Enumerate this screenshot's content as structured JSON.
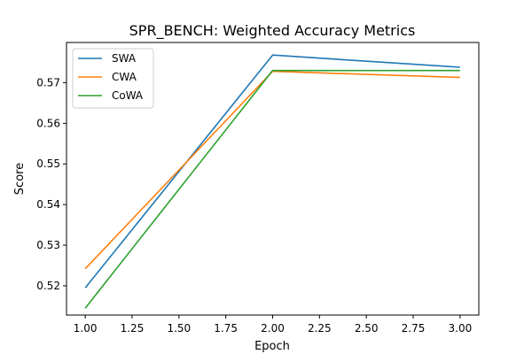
{
  "chart_data": {
    "type": "line",
    "title": "SPR_BENCH: Weighted Accuracy Metrics",
    "xlabel": "Epoch",
    "ylabel": "Score",
    "x": [
      1.0,
      2.0,
      3.0
    ],
    "xlim": [
      0.9,
      3.1
    ],
    "ylim": [
      0.5128,
      0.5799
    ],
    "xticks": [
      1.0,
      1.25,
      1.5,
      1.75,
      2.0,
      2.25,
      2.5,
      2.75,
      3.0
    ],
    "xtick_labels": [
      "1.00",
      "1.25",
      "1.50",
      "1.75",
      "2.00",
      "2.25",
      "2.50",
      "2.75",
      "3.00"
    ],
    "yticks": [
      0.52,
      0.53,
      0.54,
      0.55,
      0.56,
      0.57
    ],
    "ytick_labels": [
      "0.52",
      "0.53",
      "0.54",
      "0.55",
      "0.56",
      "0.57"
    ],
    "grid": false,
    "legend_position": "upper-left",
    "series": [
      {
        "name": "SWA",
        "color": "#1f77b4",
        "values": [
          0.5195,
          0.5768,
          0.5738
        ]
      },
      {
        "name": "CWA",
        "color": "#ff7f0e",
        "values": [
          0.5242,
          0.5728,
          0.5713
        ]
      },
      {
        "name": "CoWA",
        "color": "#2ca02c",
        "values": [
          0.5145,
          0.573,
          0.573
        ]
      }
    ]
  }
}
